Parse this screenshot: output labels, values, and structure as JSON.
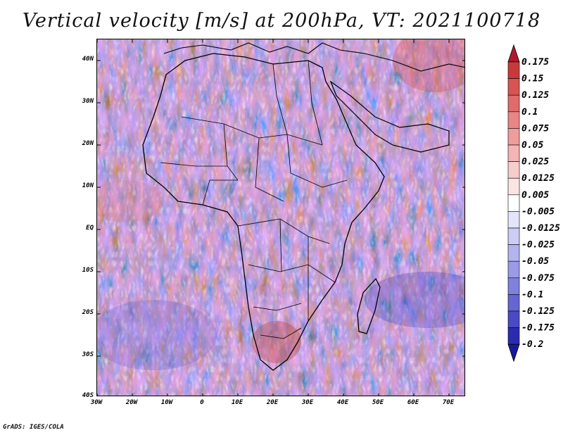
{
  "title": "Vertical velocity [m/s] at 200hPa, VT: 2021100718",
  "footer": "GrADS: IGES/COLA",
  "lat_labels": [
    "40N",
    "30N",
    "20N",
    "10N",
    "EQ",
    "10S",
    "20S",
    "30S",
    "40S"
  ],
  "lon_labels": [
    "30W",
    "20W",
    "10W",
    "0",
    "10E",
    "20E",
    "30E",
    "40E",
    "50E",
    "60E",
    "70E"
  ],
  "colorbar": {
    "levels": [
      "0.175",
      "0.15",
      "0.125",
      "0.1",
      "0.075",
      "0.05",
      "0.025",
      "0.0125",
      "0.005",
      "-0.005",
      "-0.0125",
      "-0.025",
      "-0.05",
      "-0.075",
      "-0.1",
      "-0.125",
      "-0.175",
      "-0.2"
    ],
    "colors": [
      "#b2182b",
      "#c83a3a",
      "#d75454",
      "#e06b6b",
      "#e88585",
      "#ee9d9d",
      "#f3b5b5",
      "#f7cccc",
      "#fbe4e4",
      "#ffffff",
      "#e4e4fb",
      "#ccccf5",
      "#b3b3ee",
      "#9a9ae6",
      "#8080dd",
      "#6666d2",
      "#4a4ac4",
      "#2b2bb0",
      "#1a1a99"
    ]
  }
}
